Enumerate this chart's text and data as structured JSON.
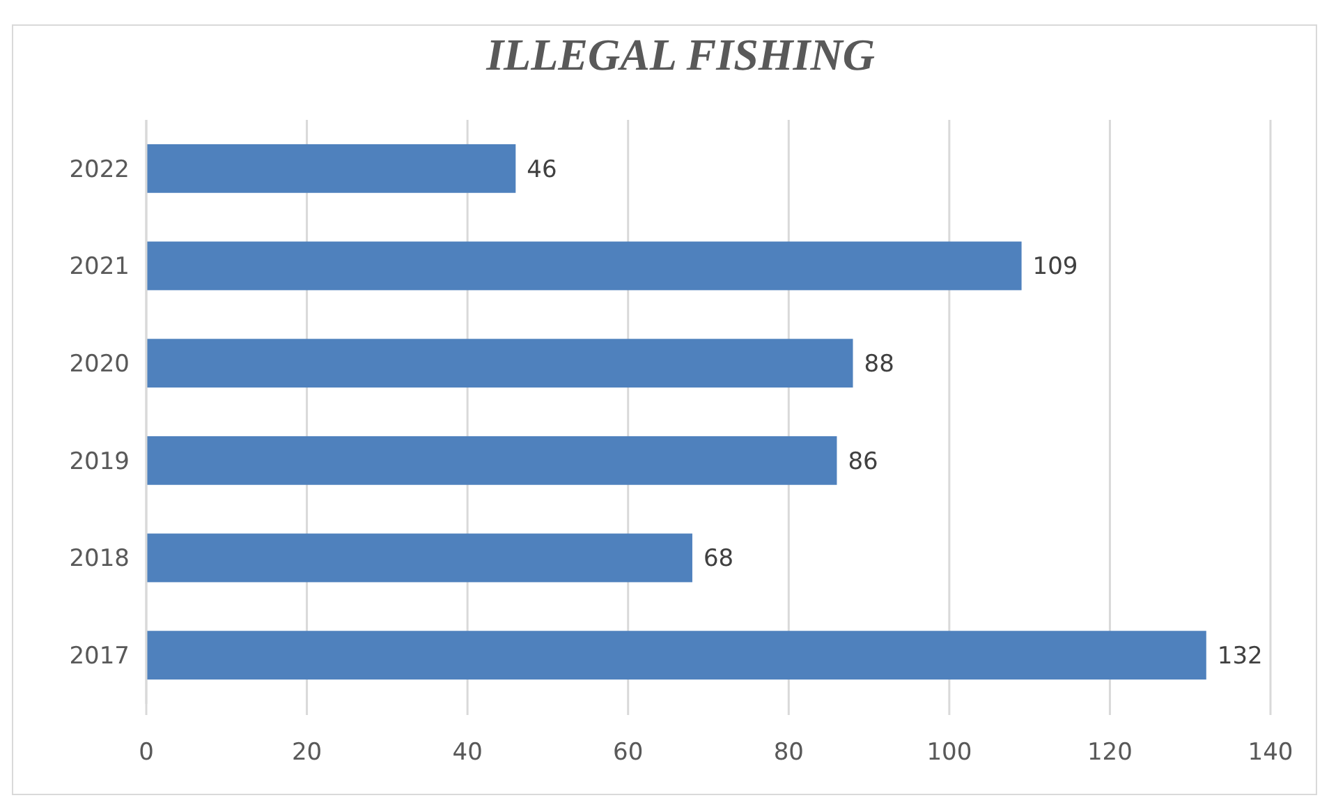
{
  "chart_data": {
    "type": "bar",
    "orientation": "horizontal",
    "title": "ILLEGAL FISHING",
    "categories": [
      "2022",
      "2021",
      "2020",
      "2019",
      "2018",
      "2017"
    ],
    "values": [
      46,
      109,
      88,
      86,
      68,
      132
    ],
    "color": "#4f81bd",
    "xlim": [
      0,
      140
    ],
    "xticks": [
      0,
      20,
      40,
      60,
      80,
      100,
      120,
      140
    ],
    "grid": "x",
    "data_labels": true
  }
}
